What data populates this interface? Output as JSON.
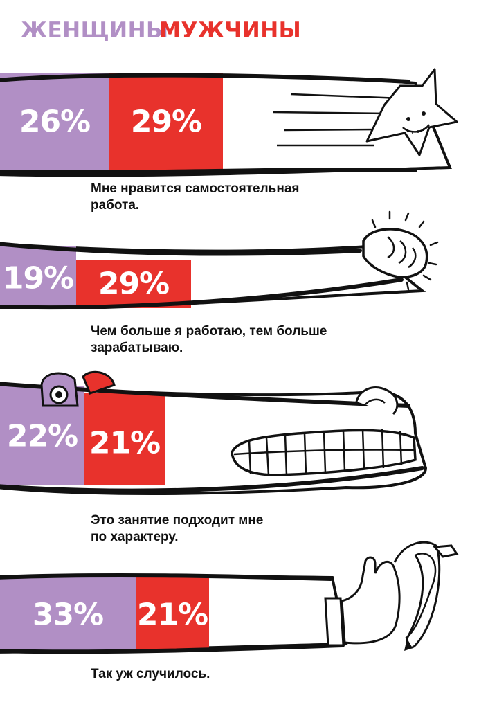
{
  "legend": {
    "women": "ЖЕНЩИНЫ",
    "men": "МУЖЧИНЫ"
  },
  "colors": {
    "women": "#b18fc5",
    "men": "#e8322c",
    "outline": "#111111"
  },
  "chart_data": {
    "type": "bar",
    "categories": [
      "Мне нравится самостоятельная работа.",
      "Чем больше я работаю, тем больше зарабатываю.",
      "Это занятие подходит мне по характеру.",
      "Так уж случилось."
    ],
    "series": [
      {
        "name": "ЖЕНЩИНЫ",
        "values": [
          26,
          19,
          22,
          33
        ],
        "labels": [
          "26%",
          "19%",
          "22%",
          "33%"
        ]
      },
      {
        "name": "МУЖЧИНЫ",
        "values": [
          29,
          29,
          21,
          21
        ],
        "labels": [
          "29%",
          "29%",
          "21%",
          "21%"
        ]
      }
    ],
    "unit": "%",
    "illustrations": [
      "star-icon",
      "fist-icon",
      "crocodile-icon",
      "banana-hand-icon"
    ]
  },
  "captions": [
    [
      "Мне нравится самостоятельная",
      "работа."
    ],
    [
      "Чем больше я работаю, тем больше",
      "зарабатываю."
    ],
    [
      "Это занятие подходит мне",
      "по характеру."
    ],
    [
      "Так уж случилось."
    ]
  ]
}
